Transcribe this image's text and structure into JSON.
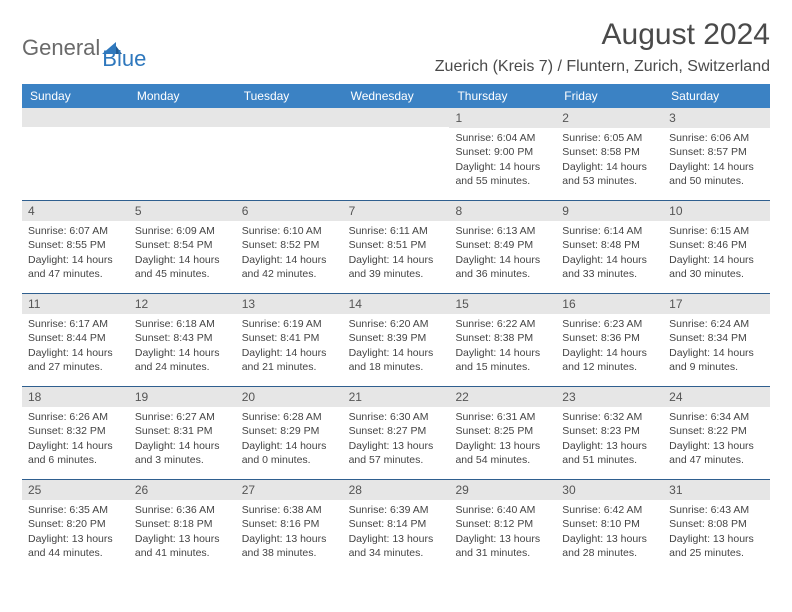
{
  "logo": {
    "part1": "General",
    "part2": "Blue"
  },
  "title": "August 2024",
  "location": "Zuerich (Kreis 7) / Fluntern, Zurich, Switzerland",
  "colors": {
    "header_bg": "#3b82c4",
    "header_text": "#ffffff",
    "daynum_bg": "#e6e6e6",
    "week_border": "#2f5f8f",
    "logo_gray": "#6a6a6a",
    "logo_blue": "#2f78bd",
    "body_text": "#444444"
  },
  "weekdays": [
    "Sunday",
    "Monday",
    "Tuesday",
    "Wednesday",
    "Thursday",
    "Friday",
    "Saturday"
  ],
  "weeks": [
    [
      null,
      null,
      null,
      null,
      {
        "n": "1",
        "sr": "Sunrise: 6:04 AM",
        "ss": "Sunset: 9:00 PM",
        "dl1": "Daylight: 14 hours",
        "dl2": "and 55 minutes."
      },
      {
        "n": "2",
        "sr": "Sunrise: 6:05 AM",
        "ss": "Sunset: 8:58 PM",
        "dl1": "Daylight: 14 hours",
        "dl2": "and 53 minutes."
      },
      {
        "n": "3",
        "sr": "Sunrise: 6:06 AM",
        "ss": "Sunset: 8:57 PM",
        "dl1": "Daylight: 14 hours",
        "dl2": "and 50 minutes."
      }
    ],
    [
      {
        "n": "4",
        "sr": "Sunrise: 6:07 AM",
        "ss": "Sunset: 8:55 PM",
        "dl1": "Daylight: 14 hours",
        "dl2": "and 47 minutes."
      },
      {
        "n": "5",
        "sr": "Sunrise: 6:09 AM",
        "ss": "Sunset: 8:54 PM",
        "dl1": "Daylight: 14 hours",
        "dl2": "and 45 minutes."
      },
      {
        "n": "6",
        "sr": "Sunrise: 6:10 AM",
        "ss": "Sunset: 8:52 PM",
        "dl1": "Daylight: 14 hours",
        "dl2": "and 42 minutes."
      },
      {
        "n": "7",
        "sr": "Sunrise: 6:11 AM",
        "ss": "Sunset: 8:51 PM",
        "dl1": "Daylight: 14 hours",
        "dl2": "and 39 minutes."
      },
      {
        "n": "8",
        "sr": "Sunrise: 6:13 AM",
        "ss": "Sunset: 8:49 PM",
        "dl1": "Daylight: 14 hours",
        "dl2": "and 36 minutes."
      },
      {
        "n": "9",
        "sr": "Sunrise: 6:14 AM",
        "ss": "Sunset: 8:48 PM",
        "dl1": "Daylight: 14 hours",
        "dl2": "and 33 minutes."
      },
      {
        "n": "10",
        "sr": "Sunrise: 6:15 AM",
        "ss": "Sunset: 8:46 PM",
        "dl1": "Daylight: 14 hours",
        "dl2": "and 30 minutes."
      }
    ],
    [
      {
        "n": "11",
        "sr": "Sunrise: 6:17 AM",
        "ss": "Sunset: 8:44 PM",
        "dl1": "Daylight: 14 hours",
        "dl2": "and 27 minutes."
      },
      {
        "n": "12",
        "sr": "Sunrise: 6:18 AM",
        "ss": "Sunset: 8:43 PM",
        "dl1": "Daylight: 14 hours",
        "dl2": "and 24 minutes."
      },
      {
        "n": "13",
        "sr": "Sunrise: 6:19 AM",
        "ss": "Sunset: 8:41 PM",
        "dl1": "Daylight: 14 hours",
        "dl2": "and 21 minutes."
      },
      {
        "n": "14",
        "sr": "Sunrise: 6:20 AM",
        "ss": "Sunset: 8:39 PM",
        "dl1": "Daylight: 14 hours",
        "dl2": "and 18 minutes."
      },
      {
        "n": "15",
        "sr": "Sunrise: 6:22 AM",
        "ss": "Sunset: 8:38 PM",
        "dl1": "Daylight: 14 hours",
        "dl2": "and 15 minutes."
      },
      {
        "n": "16",
        "sr": "Sunrise: 6:23 AM",
        "ss": "Sunset: 8:36 PM",
        "dl1": "Daylight: 14 hours",
        "dl2": "and 12 minutes."
      },
      {
        "n": "17",
        "sr": "Sunrise: 6:24 AM",
        "ss": "Sunset: 8:34 PM",
        "dl1": "Daylight: 14 hours",
        "dl2": "and 9 minutes."
      }
    ],
    [
      {
        "n": "18",
        "sr": "Sunrise: 6:26 AM",
        "ss": "Sunset: 8:32 PM",
        "dl1": "Daylight: 14 hours",
        "dl2": "and 6 minutes."
      },
      {
        "n": "19",
        "sr": "Sunrise: 6:27 AM",
        "ss": "Sunset: 8:31 PM",
        "dl1": "Daylight: 14 hours",
        "dl2": "and 3 minutes."
      },
      {
        "n": "20",
        "sr": "Sunrise: 6:28 AM",
        "ss": "Sunset: 8:29 PM",
        "dl1": "Daylight: 14 hours",
        "dl2": "and 0 minutes."
      },
      {
        "n": "21",
        "sr": "Sunrise: 6:30 AM",
        "ss": "Sunset: 8:27 PM",
        "dl1": "Daylight: 13 hours",
        "dl2": "and 57 minutes."
      },
      {
        "n": "22",
        "sr": "Sunrise: 6:31 AM",
        "ss": "Sunset: 8:25 PM",
        "dl1": "Daylight: 13 hours",
        "dl2": "and 54 minutes."
      },
      {
        "n": "23",
        "sr": "Sunrise: 6:32 AM",
        "ss": "Sunset: 8:23 PM",
        "dl1": "Daylight: 13 hours",
        "dl2": "and 51 minutes."
      },
      {
        "n": "24",
        "sr": "Sunrise: 6:34 AM",
        "ss": "Sunset: 8:22 PM",
        "dl1": "Daylight: 13 hours",
        "dl2": "and 47 minutes."
      }
    ],
    [
      {
        "n": "25",
        "sr": "Sunrise: 6:35 AM",
        "ss": "Sunset: 8:20 PM",
        "dl1": "Daylight: 13 hours",
        "dl2": "and 44 minutes."
      },
      {
        "n": "26",
        "sr": "Sunrise: 6:36 AM",
        "ss": "Sunset: 8:18 PM",
        "dl1": "Daylight: 13 hours",
        "dl2": "and 41 minutes."
      },
      {
        "n": "27",
        "sr": "Sunrise: 6:38 AM",
        "ss": "Sunset: 8:16 PM",
        "dl1": "Daylight: 13 hours",
        "dl2": "and 38 minutes."
      },
      {
        "n": "28",
        "sr": "Sunrise: 6:39 AM",
        "ss": "Sunset: 8:14 PM",
        "dl1": "Daylight: 13 hours",
        "dl2": "and 34 minutes."
      },
      {
        "n": "29",
        "sr": "Sunrise: 6:40 AM",
        "ss": "Sunset: 8:12 PM",
        "dl1": "Daylight: 13 hours",
        "dl2": "and 31 minutes."
      },
      {
        "n": "30",
        "sr": "Sunrise: 6:42 AM",
        "ss": "Sunset: 8:10 PM",
        "dl1": "Daylight: 13 hours",
        "dl2": "and 28 minutes."
      },
      {
        "n": "31",
        "sr": "Sunrise: 6:43 AM",
        "ss": "Sunset: 8:08 PM",
        "dl1": "Daylight: 13 hours",
        "dl2": "and 25 minutes."
      }
    ]
  ]
}
